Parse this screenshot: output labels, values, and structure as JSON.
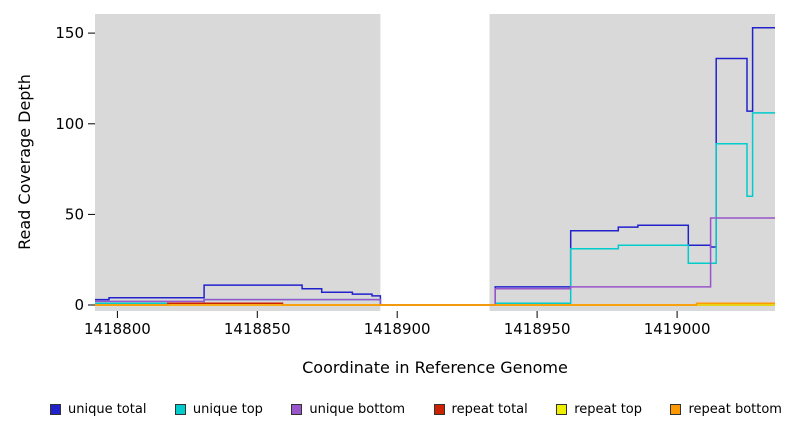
{
  "chart_data": {
    "type": "line",
    "subtype": "step",
    "title": "",
    "xlabel": "Coordinate in Reference Genome",
    "ylabel": "Read Coverage Depth",
    "xlim": [
      1418792,
      1419035
    ],
    "ylim": [
      0,
      160
    ],
    "x_ticks": [
      1418800,
      1418850,
      1418900,
      1418950,
      1419000
    ],
    "y_ticks": [
      0,
      50,
      100,
      150
    ],
    "grid": false,
    "plot_bg": "#d9d9d9",
    "gap_band": {
      "x0": 1418894,
      "x1": 1418933,
      "color": "#ffffff"
    },
    "legend_position": "bottom",
    "series": [
      {
        "name": "unique total",
        "color": "#2222cc",
        "points": [
          [
            1418792,
            3
          ],
          [
            1418797,
            4
          ],
          [
            1418831,
            11
          ],
          [
            1418866,
            9
          ],
          [
            1418873,
            7
          ],
          [
            1418884,
            6
          ],
          [
            1418891,
            5
          ],
          [
            1418894,
            0
          ],
          [
            1418935,
            10
          ],
          [
            1418962,
            41
          ],
          [
            1418979,
            43
          ],
          [
            1418986,
            44
          ],
          [
            1419004,
            33
          ],
          [
            1419012,
            32
          ],
          [
            1419014,
            136
          ],
          [
            1419025,
            107
          ],
          [
            1419027,
            153
          ],
          [
            1419035,
            153
          ]
        ]
      },
      {
        "name": "unique top",
        "color": "#00cccc",
        "points": [
          [
            1418792,
            1
          ],
          [
            1418831,
            3
          ],
          [
            1418894,
            0
          ],
          [
            1418935,
            1
          ],
          [
            1418962,
            31
          ],
          [
            1418979,
            33
          ],
          [
            1419004,
            23
          ],
          [
            1419014,
            89
          ],
          [
            1419025,
            60
          ],
          [
            1419027,
            106
          ],
          [
            1419035,
            106
          ]
        ]
      },
      {
        "name": "unique bottom",
        "color": "#9955cc",
        "points": [
          [
            1418792,
            2
          ],
          [
            1418831,
            3
          ],
          [
            1418894,
            0
          ],
          [
            1418935,
            9
          ],
          [
            1418962,
            10
          ],
          [
            1419012,
            48
          ],
          [
            1419035,
            48
          ]
        ]
      },
      {
        "name": "repeat total",
        "color": "#cc2200",
        "points": [
          [
            1418792,
            0
          ],
          [
            1418818,
            1
          ],
          [
            1418859,
            0
          ],
          [
            1419035,
            0
          ]
        ]
      },
      {
        "name": "repeat top",
        "color": "#eeee00",
        "points": [
          [
            1418792,
            0
          ],
          [
            1419035,
            0
          ]
        ]
      },
      {
        "name": "repeat bottom",
        "color": "#ff9900",
        "points": [
          [
            1418792,
            0
          ],
          [
            1419007,
            1
          ],
          [
            1419035,
            1
          ]
        ]
      }
    ],
    "legend": [
      {
        "label": "unique total",
        "color": "#2222cc"
      },
      {
        "label": "unique top",
        "color": "#00cccc"
      },
      {
        "label": "unique bottom",
        "color": "#9955cc"
      },
      {
        "label": "repeat total",
        "color": "#cc2200"
      },
      {
        "label": "repeat top",
        "color": "#eeee00"
      },
      {
        "label": "repeat bottom",
        "color": "#ff9900"
      }
    ]
  }
}
